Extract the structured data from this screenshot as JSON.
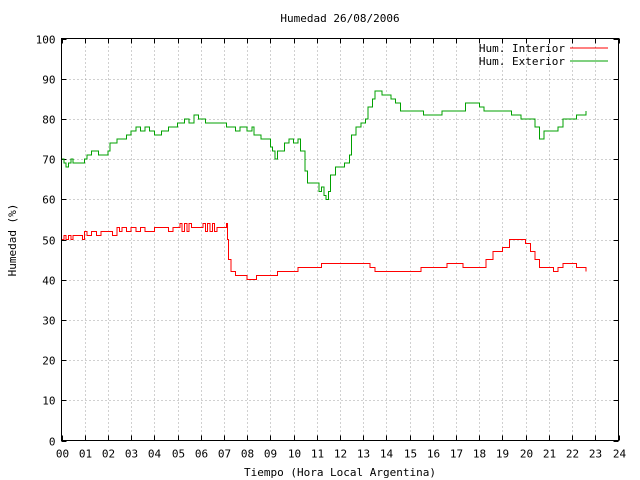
{
  "chart_data": {
    "type": "line",
    "title": "Humedad 26/08/2006",
    "xlabel": "Tiempo (Hora Local Argentina)",
    "ylabel": "Humedad (%)",
    "xlim": [
      0,
      24
    ],
    "ylim": [
      0,
      100
    ],
    "x_ticks": [
      "00",
      "01",
      "02",
      "03",
      "04",
      "05",
      "06",
      "07",
      "08",
      "09",
      "10",
      "11",
      "12",
      "13",
      "14",
      "15",
      "16",
      "17",
      "18",
      "19",
      "20",
      "21",
      "22",
      "23",
      "24"
    ],
    "y_ticks": [
      "0",
      "10",
      "20",
      "30",
      "40",
      "50",
      "60",
      "70",
      "80",
      "90",
      "100"
    ],
    "grid": true,
    "legend_position": "top-right",
    "series": [
      {
        "name": "Hum. Interior",
        "color": "#ff0000",
        "points": [
          [
            0.0,
            50
          ],
          [
            0.1,
            51
          ],
          [
            0.2,
            50
          ],
          [
            0.3,
            51
          ],
          [
            0.4,
            50
          ],
          [
            0.5,
            51
          ],
          [
            0.6,
            51
          ],
          [
            0.8,
            51
          ],
          [
            0.9,
            50
          ],
          [
            1.0,
            52
          ],
          [
            1.1,
            51
          ],
          [
            1.3,
            52
          ],
          [
            1.5,
            51
          ],
          [
            1.7,
            52
          ],
          [
            2.0,
            52
          ],
          [
            2.2,
            51
          ],
          [
            2.4,
            53
          ],
          [
            2.5,
            52
          ],
          [
            2.6,
            53
          ],
          [
            2.8,
            52
          ],
          [
            3.0,
            53
          ],
          [
            3.2,
            52
          ],
          [
            3.4,
            53
          ],
          [
            3.6,
            52
          ],
          [
            4.0,
            53
          ],
          [
            4.4,
            53
          ],
          [
            4.6,
            52
          ],
          [
            4.8,
            53
          ],
          [
            5.0,
            53
          ],
          [
            5.1,
            54
          ],
          [
            5.2,
            52
          ],
          [
            5.3,
            54
          ],
          [
            5.4,
            52
          ],
          [
            5.5,
            54
          ],
          [
            5.6,
            53
          ],
          [
            5.8,
            53
          ],
          [
            6.0,
            53
          ],
          [
            6.1,
            54
          ],
          [
            6.2,
            52
          ],
          [
            6.3,
            54
          ],
          [
            6.4,
            52
          ],
          [
            6.5,
            54
          ],
          [
            6.6,
            52
          ],
          [
            6.7,
            53
          ],
          [
            6.8,
            53
          ],
          [
            7.0,
            53
          ],
          [
            7.1,
            54
          ],
          [
            7.15,
            50
          ],
          [
            7.2,
            45
          ],
          [
            7.3,
            42
          ],
          [
            7.5,
            41
          ],
          [
            7.8,
            41
          ],
          [
            8.0,
            40
          ],
          [
            8.2,
            40
          ],
          [
            8.4,
            41
          ],
          [
            9.0,
            41
          ],
          [
            9.3,
            42
          ],
          [
            10.0,
            42
          ],
          [
            10.2,
            43
          ],
          [
            11.0,
            43
          ],
          [
            11.2,
            44
          ],
          [
            12.0,
            44
          ],
          [
            13.0,
            44
          ],
          [
            13.3,
            43
          ],
          [
            13.5,
            42
          ],
          [
            14.0,
            42
          ],
          [
            15.0,
            42
          ],
          [
            15.5,
            43
          ],
          [
            16.0,
            43
          ],
          [
            16.6,
            44
          ],
          [
            17.0,
            44
          ],
          [
            17.3,
            43
          ],
          [
            17.6,
            43
          ],
          [
            18.0,
            43
          ],
          [
            18.3,
            45
          ],
          [
            18.6,
            47
          ],
          [
            19.0,
            48
          ],
          [
            19.3,
            50
          ],
          [
            19.8,
            50
          ],
          [
            20.0,
            49
          ],
          [
            20.2,
            47
          ],
          [
            20.4,
            45
          ],
          [
            20.6,
            43
          ],
          [
            21.0,
            43
          ],
          [
            21.2,
            42
          ],
          [
            21.4,
            43
          ],
          [
            21.6,
            44
          ],
          [
            22.0,
            44
          ],
          [
            22.2,
            43
          ],
          [
            22.6,
            42
          ]
        ]
      },
      {
        "name": "Hum. Exterior",
        "color": "#00a000",
        "points": [
          [
            0.0,
            70
          ],
          [
            0.1,
            69
          ],
          [
            0.2,
            68
          ],
          [
            0.3,
            69
          ],
          [
            0.4,
            70
          ],
          [
            0.5,
            69
          ],
          [
            0.8,
            69
          ],
          [
            1.0,
            70
          ],
          [
            1.1,
            71
          ],
          [
            1.3,
            72
          ],
          [
            1.6,
            71
          ],
          [
            2.0,
            72
          ],
          [
            2.1,
            74
          ],
          [
            2.4,
            75
          ],
          [
            2.8,
            76
          ],
          [
            3.0,
            77
          ],
          [
            3.2,
            78
          ],
          [
            3.4,
            77
          ],
          [
            3.6,
            78
          ],
          [
            3.8,
            77
          ],
          [
            4.0,
            76
          ],
          [
            4.3,
            77
          ],
          [
            4.6,
            78
          ],
          [
            5.0,
            79
          ],
          [
            5.3,
            80
          ],
          [
            5.5,
            79
          ],
          [
            5.7,
            81
          ],
          [
            5.9,
            80
          ],
          [
            6.2,
            79
          ],
          [
            7.0,
            79
          ],
          [
            7.1,
            78
          ],
          [
            7.3,
            78
          ],
          [
            7.5,
            77
          ],
          [
            7.7,
            78
          ],
          [
            8.0,
            77
          ],
          [
            8.2,
            78
          ],
          [
            8.3,
            76
          ],
          [
            8.6,
            75
          ],
          [
            8.9,
            75
          ],
          [
            9.0,
            73
          ],
          [
            9.1,
            72
          ],
          [
            9.2,
            70
          ],
          [
            9.3,
            72
          ],
          [
            9.6,
            74
          ],
          [
            9.8,
            75
          ],
          [
            10.0,
            74
          ],
          [
            10.2,
            75
          ],
          [
            10.3,
            72
          ],
          [
            10.5,
            67
          ],
          [
            10.6,
            64
          ],
          [
            11.0,
            64
          ],
          [
            11.1,
            62
          ],
          [
            11.2,
            63
          ],
          [
            11.3,
            61
          ],
          [
            11.4,
            60
          ],
          [
            11.5,
            62
          ],
          [
            11.6,
            66
          ],
          [
            11.8,
            68
          ],
          [
            12.0,
            68
          ],
          [
            12.2,
            69
          ],
          [
            12.4,
            71
          ],
          [
            12.5,
            76
          ],
          [
            12.7,
            78
          ],
          [
            12.9,
            79
          ],
          [
            13.1,
            80
          ],
          [
            13.2,
            83
          ],
          [
            13.4,
            85
          ],
          [
            13.5,
            87
          ],
          [
            13.8,
            86
          ],
          [
            14.0,
            86
          ],
          [
            14.2,
            85
          ],
          [
            14.4,
            84
          ],
          [
            14.6,
            82
          ],
          [
            15.0,
            82
          ],
          [
            15.3,
            82
          ],
          [
            15.6,
            81
          ],
          [
            16.0,
            81
          ],
          [
            16.4,
            82
          ],
          [
            16.8,
            82
          ],
          [
            17.0,
            82
          ],
          [
            17.2,
            82
          ],
          [
            17.4,
            84
          ],
          [
            17.9,
            84
          ],
          [
            18.0,
            83
          ],
          [
            18.2,
            82
          ],
          [
            18.6,
            82
          ],
          [
            19.0,
            82
          ],
          [
            19.4,
            81
          ],
          [
            19.8,
            80
          ],
          [
            20.3,
            80
          ],
          [
            20.4,
            78
          ],
          [
            20.6,
            75
          ],
          [
            20.8,
            77
          ],
          [
            21.4,
            78
          ],
          [
            21.6,
            80
          ],
          [
            22.0,
            80
          ],
          [
            22.2,
            81
          ],
          [
            22.6,
            82
          ]
        ]
      }
    ]
  }
}
